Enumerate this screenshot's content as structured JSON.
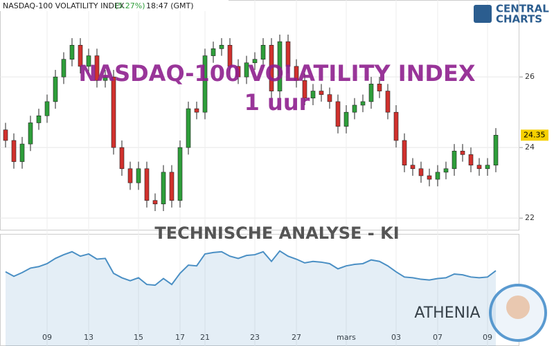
{
  "chart_data": {
    "type": "candlestick",
    "title": "NASDAQ-100 VOLATILITY INDEX",
    "change_label": "(5.27%)",
    "time": "18:47 (GMT)",
    "watermark_title": "NASDAQ-100 VOLATILITY INDEX",
    "watermark_subtitle": "1 uur",
    "analysis_label": "TECHNISCHE ANALYSE - KI",
    "assistant_name": "ATHENIA",
    "brand": [
      "CENTRAL",
      "CHARTS"
    ],
    "categories": [
      null,
      null,
      null,
      null,
      null,
      "09",
      null,
      null,
      null,
      null,
      "13",
      null,
      null,
      null,
      null,
      null,
      "15",
      null,
      null,
      null,
      null,
      "17",
      null,
      null,
      "21",
      null,
      null,
      null,
      null,
      null,
      "23",
      null,
      null,
      null,
      null,
      "27",
      null,
      null,
      null,
      null,
      null,
      "mars",
      null,
      null,
      null,
      null,
      null,
      "03",
      null,
      null,
      null,
      null,
      "07",
      null,
      null,
      null,
      null,
      null,
      "09",
      null
    ],
    "open": [
      24.5,
      24.2,
      23.6,
      24.1,
      24.7,
      24.9,
      25.3,
      26.0,
      26.5,
      26.9,
      26.3,
      26.6,
      25.9,
      26.0,
      24.0,
      23.4,
      23.0,
      23.4,
      22.5,
      22.4,
      23.3,
      22.5,
      24.0,
      25.1,
      25.0,
      26.6,
      26.8,
      26.9,
      26.3,
      26.0,
      26.4,
      26.5,
      26.9,
      25.6,
      27.0,
      26.3,
      25.9,
      25.4,
      25.6,
      25.5,
      25.3,
      24.6,
      25.0,
      25.2,
      25.3,
      25.8,
      25.6,
      25.0,
      24.2,
      23.5,
      23.4,
      23.2,
      23.1,
      23.3,
      23.4,
      23.9,
      23.8,
      23.5,
      23.4,
      23.5
    ],
    "high": [
      24.7,
      24.4,
      24.3,
      24.9,
      25.1,
      25.5,
      26.2,
      26.7,
      27.1,
      27.1,
      26.8,
      26.8,
      26.2,
      26.2,
      24.2,
      23.6,
      23.6,
      23.6,
      22.7,
      23.5,
      23.5,
      24.2,
      25.3,
      25.3,
      26.8,
      27.0,
      27.1,
      27.1,
      26.5,
      26.6,
      26.7,
      27.1,
      27.1,
      27.2,
      27.2,
      26.5,
      26.1,
      25.8,
      25.8,
      25.7,
      25.5,
      25.2,
      25.4,
      25.5,
      26.0,
      26.0,
      25.8,
      25.2,
      24.4,
      23.7,
      23.6,
      23.4,
      23.5,
      23.6,
      24.1,
      24.1,
      24.0,
      23.7,
      23.7,
      24.55
    ],
    "low": [
      24.0,
      23.4,
      23.4,
      23.9,
      24.5,
      24.7,
      25.1,
      25.8,
      26.3,
      26.1,
      26.1,
      25.7,
      25.7,
      23.8,
      23.2,
      22.8,
      22.8,
      22.3,
      22.2,
      22.2,
      22.3,
      22.3,
      23.8,
      24.8,
      24.8,
      26.4,
      26.6,
      26.1,
      25.8,
      25.8,
      26.2,
      26.3,
      25.4,
      25.4,
      26.1,
      25.7,
      25.2,
      25.2,
      25.3,
      25.1,
      24.4,
      24.4,
      24.8,
      25.0,
      25.1,
      25.4,
      24.8,
      24.0,
      23.3,
      23.2,
      23.0,
      22.9,
      22.9,
      23.1,
      23.2,
      23.6,
      23.3,
      23.2,
      23.2,
      23.3
    ],
    "close": [
      24.2,
      23.6,
      24.1,
      24.7,
      24.9,
      25.3,
      26.0,
      26.5,
      26.9,
      26.3,
      26.6,
      25.9,
      26.0,
      24.0,
      23.4,
      23.0,
      23.4,
      22.5,
      22.4,
      23.3,
      22.5,
      24.0,
      25.1,
      25.0,
      26.6,
      26.8,
      26.9,
      26.3,
      26.0,
      26.4,
      26.5,
      26.9,
      25.6,
      27.0,
      26.3,
      25.9,
      25.4,
      25.6,
      25.5,
      25.3,
      24.6,
      25.0,
      25.2,
      25.3,
      25.8,
      25.6,
      25.0,
      24.2,
      23.5,
      23.4,
      23.2,
      23.1,
      23.3,
      23.4,
      23.9,
      23.8,
      23.5,
      23.4,
      23.5,
      24.35
    ],
    "up_color": "#2e9e3a",
    "down_color": "#d0312d",
    "navigator_color": "#4a8fc4",
    "ylim": [
      21.67,
      28.18
    ],
    "yticks": [
      22,
      24,
      26
    ],
    "grid": true
  }
}
